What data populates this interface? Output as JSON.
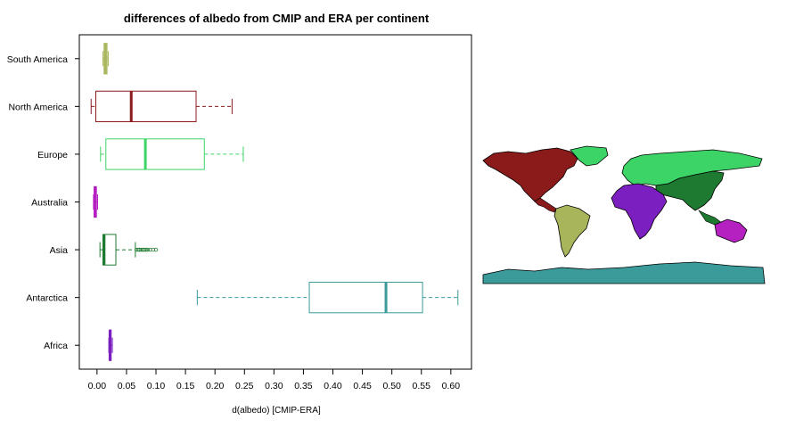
{
  "chart_data": {
    "type": "boxplot",
    "orientation": "horizontal",
    "title": "differences of albedo from CMIP and ERA per continent",
    "xlabel": "d(albedo) [CMIP-ERA]",
    "ylabel": "",
    "xlim": [
      -0.03,
      0.635
    ],
    "xticks": [
      0.0,
      0.05,
      0.1,
      0.15,
      0.2,
      0.25,
      0.3,
      0.35,
      0.4,
      0.45,
      0.5,
      0.55,
      0.6
    ],
    "xtick_labels": [
      "0.00",
      "0.05",
      "0.10",
      "0.15",
      "0.20",
      "0.25",
      "0.30",
      "0.35",
      "0.40",
      "0.45",
      "0.50",
      "0.55",
      "0.60"
    ],
    "grid": false,
    "legend": "none",
    "categories": [
      "South America",
      "North America",
      "Europe",
      "Australia",
      "Asia",
      "Antarctica",
      "Africa"
    ],
    "series": [
      {
        "category": "South America",
        "color": "#a9b55b",
        "whisker_low": 0.01,
        "q1": 0.012,
        "median": 0.014,
        "q3": 0.017,
        "whisker_high": 0.019,
        "outliers": []
      },
      {
        "category": "North America",
        "color": "#8b1a1a",
        "whisker_low": -0.01,
        "q1": -0.002,
        "median": 0.058,
        "q3": 0.168,
        "whisker_high": 0.229,
        "outliers": []
      },
      {
        "category": "Europe",
        "color": "#3cd466",
        "whisker_low": 0.006,
        "q1": 0.015,
        "median": 0.082,
        "q3": 0.182,
        "whisker_high": 0.248,
        "outliers": []
      },
      {
        "category": "Australia",
        "color": "#b520c0",
        "whisker_low": -0.006,
        "q1": -0.005,
        "median": -0.003,
        "q3": -0.001,
        "whisker_high": 0.001,
        "outliers": []
      },
      {
        "category": "Asia",
        "color": "#1e7a30",
        "whisker_low": 0.005,
        "q1": 0.01,
        "median": 0.012,
        "q3": 0.032,
        "whisker_high": 0.065,
        "outliers": [
          0.067,
          0.07,
          0.072,
          0.075,
          0.078,
          0.08,
          0.083,
          0.086,
          0.09,
          0.095,
          0.1
        ]
      },
      {
        "category": "Antarctica",
        "color": "#3b9a9a",
        "whisker_low": 0.17,
        "q1": 0.36,
        "median": 0.49,
        "q3": 0.552,
        "whisker_high": 0.612,
        "outliers": []
      },
      {
        "category": "Africa",
        "color": "#7b1fc0",
        "whisker_low": 0.02,
        "q1": 0.021,
        "median": 0.022,
        "q3": 0.024,
        "whisker_high": 0.026,
        "outliers": []
      }
    ]
  },
  "map": {
    "legend": "continent colors map",
    "colors": {
      "South America": "#a9b55b",
      "North America": "#8b1a1a",
      "Europe": "#3cd466",
      "Australia": "#b520c0",
      "Asia": "#1e7a30",
      "Antarctica": "#3b9a9a",
      "Africa": "#7b1fc0"
    }
  }
}
